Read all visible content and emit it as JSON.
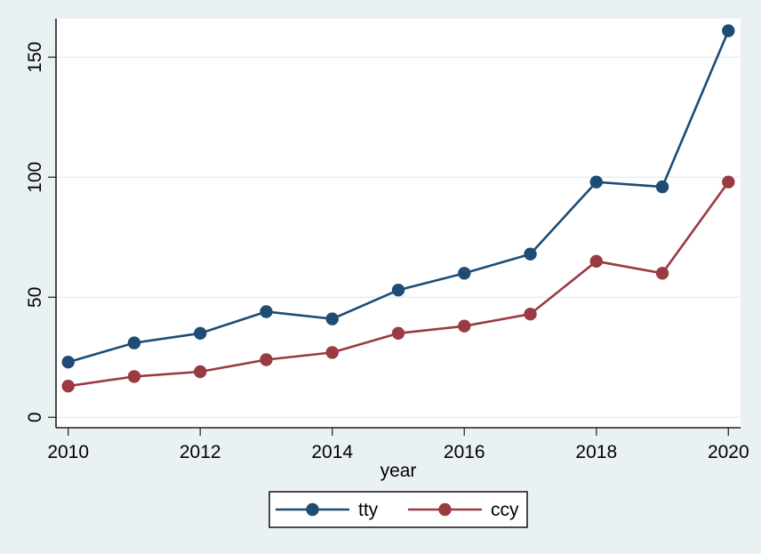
{
  "figure": {
    "background": "#eaf1f2",
    "plot_background": "#ffffff",
    "grid_color": "#e4edf3",
    "axis_color": "#1f1f1f",
    "tick_color": "#3a3a3a",
    "text_color": "#000000",
    "legend_border_color": "#000000"
  },
  "chart_data": {
    "type": "line",
    "xlabel": "year",
    "ylabel": "",
    "x": [
      2010,
      2011,
      2012,
      2013,
      2014,
      2015,
      2016,
      2017,
      2018,
      2019,
      2020
    ],
    "series": [
      {
        "name": "tty",
        "color": "#1e4c74",
        "values": [
          23,
          31,
          35,
          44,
          41,
          53,
          60,
          68,
          98,
          96,
          161
        ]
      },
      {
        "name": "ccy",
        "color": "#9a3a42",
        "values": [
          13,
          17,
          19,
          24,
          27,
          35,
          38,
          43,
          65,
          60,
          98
        ]
      }
    ],
    "xticks": [
      2010,
      2012,
      2014,
      2016,
      2018,
      2020
    ],
    "yticks": [
      0,
      50,
      100,
      150
    ],
    "xlim": [
      2010,
      2020
    ],
    "ylim": [
      0,
      166
    ],
    "grid": true,
    "legend_position": "bottom-center",
    "marker": "circle"
  }
}
